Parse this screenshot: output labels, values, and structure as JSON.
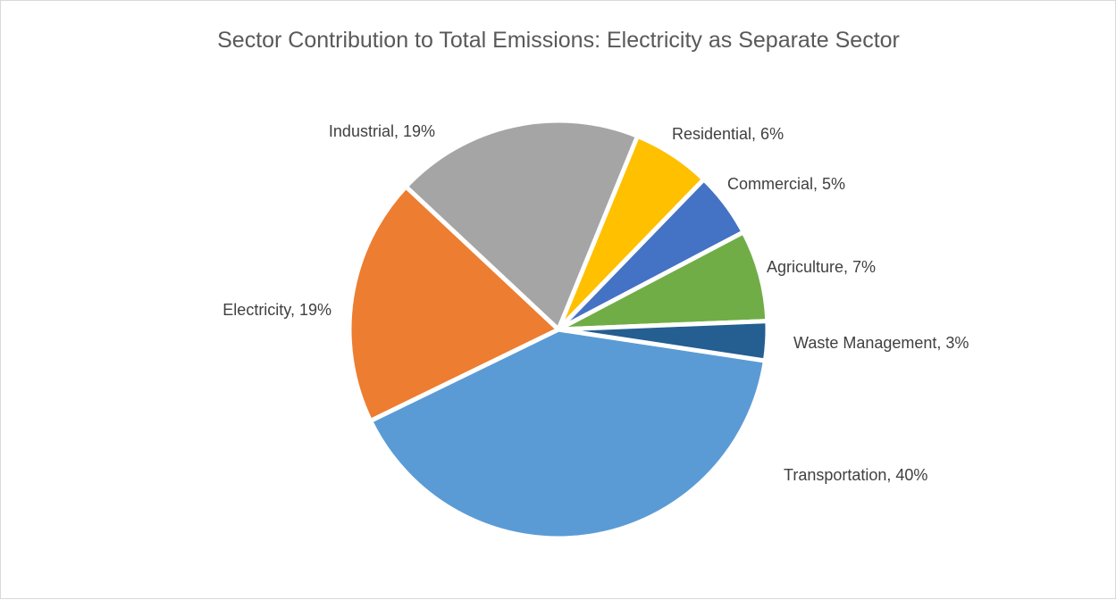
{
  "chart_data": {
    "type": "pie",
    "title": "Sector Contribution to Total Emissions: Electricity as Separate Sector",
    "unit": "%",
    "slices": [
      {
        "label": "Transportation",
        "value": 40,
        "color": "#5B9BD5"
      },
      {
        "label": "Electricity",
        "value": 19,
        "color": "#ED7D31"
      },
      {
        "label": "Industrial",
        "value": 19,
        "color": "#A5A5A5"
      },
      {
        "label": "Residential",
        "value": 6,
        "color": "#FFC000"
      },
      {
        "label": "Commercial",
        "value": 5,
        "color": "#4472C4"
      },
      {
        "label": "Agriculture",
        "value": 7,
        "color": "#70AD47"
      },
      {
        "label": "Waste Management",
        "value": 3,
        "color": "#255E91"
      }
    ],
    "legend": "none",
    "data_labels": "outside"
  }
}
